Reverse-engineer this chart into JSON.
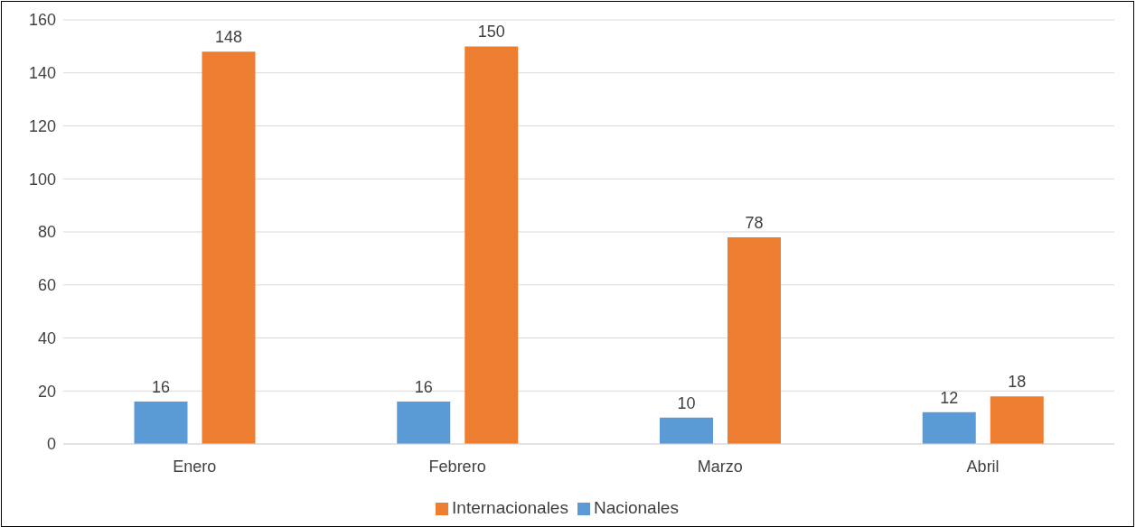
{
  "chart_data": {
    "type": "bar",
    "categories": [
      "Enero",
      "Febrero",
      "Marzo",
      "Abril"
    ],
    "series": [
      {
        "name": "Nacionales",
        "color": "#5b9bd5",
        "values": [
          16,
          16,
          10,
          12
        ]
      },
      {
        "name": "Internacionales",
        "color": "#ed7d31",
        "values": [
          148,
          150,
          78,
          18
        ]
      }
    ],
    "ylim": [
      0,
      160
    ],
    "yticks": [
      0,
      20,
      40,
      60,
      80,
      100,
      120,
      140,
      160
    ],
    "grid": "y",
    "legend": "bottom",
    "data_labels": true
  }
}
